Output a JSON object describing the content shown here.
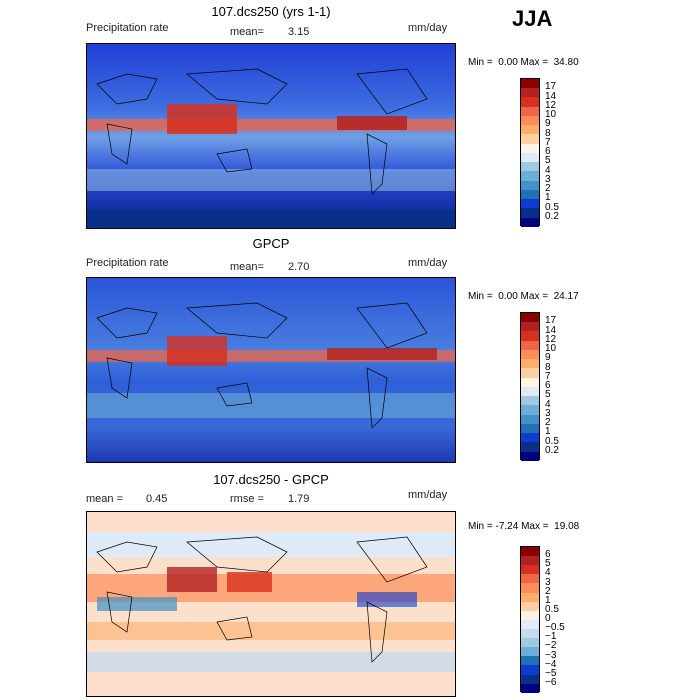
{
  "season": "JJA",
  "panels": [
    {
      "title": "107.dcs250 (yrs 1-1)",
      "left_label": "Precipitation rate",
      "mean_label": "mean=",
      "mean_value": "3.15",
      "units": "mm/day",
      "min_label": "Min =",
      "min_value": "0.00",
      "max_label": "Max =",
      "max_value": "34.80",
      "levels": [
        "17",
        "14",
        "12",
        "10",
        "9",
        "8",
        "7",
        "6",
        "5",
        "4",
        "3",
        "2",
        "1",
        "0.5",
        "0.2"
      ],
      "colors": [
        "#8b0000",
        "#b22222",
        "#d7301f",
        "#ef6548",
        "#fc8d59",
        "#fdae6b",
        "#fdd0a2",
        "#fff5e6",
        "#deebf7",
        "#9ecae1",
        "#6baed6",
        "#4292c6",
        "#2171b5",
        "#0b3bd0",
        "#08308b",
        "#000080"
      ]
    },
    {
      "title": "GPCP",
      "left_label": "Precipitation rate",
      "mean_label": "mean=",
      "mean_value": "2.70",
      "units": "mm/day",
      "min_label": "Min =",
      "min_value": "0.00",
      "max_label": "Max =",
      "max_value": "24.17",
      "levels": [
        "17",
        "14",
        "12",
        "10",
        "9",
        "8",
        "7",
        "6",
        "5",
        "4",
        "3",
        "2",
        "1",
        "0.5",
        "0.2"
      ],
      "colors": [
        "#8b0000",
        "#b22222",
        "#d7301f",
        "#ef6548",
        "#fc8d59",
        "#fdae6b",
        "#fdd0a2",
        "#fff5e6",
        "#deebf7",
        "#9ecae1",
        "#6baed6",
        "#4292c6",
        "#2171b5",
        "#0b3bd0",
        "#08308b",
        "#000080"
      ]
    },
    {
      "title": "107.dcs250 - GPCP",
      "left_label": "mean =",
      "left_value": "0.45",
      "mean_label": "rmse =",
      "mean_value": "1.79",
      "units": "mm/day",
      "min_label": "Min =",
      "min_value": "-7.24",
      "max_label": "Max =",
      "max_value": "19.08",
      "levels": [
        "6",
        "5",
        "4",
        "3",
        "2",
        "1",
        "0.5",
        "0",
        "−0.5",
        "−1",
        "−2",
        "−3",
        "−4",
        "−5",
        "−6"
      ],
      "colors": [
        "#8b0000",
        "#b22222",
        "#d7301f",
        "#ef6548",
        "#fc8d59",
        "#fdae6b",
        "#fdd0a2",
        "#fff0e6",
        "#e0ecf8",
        "#c6dbef",
        "#9ecae1",
        "#6baed6",
        "#2171b5",
        "#0b3bd0",
        "#08308b",
        "#000080"
      ]
    }
  ]
}
